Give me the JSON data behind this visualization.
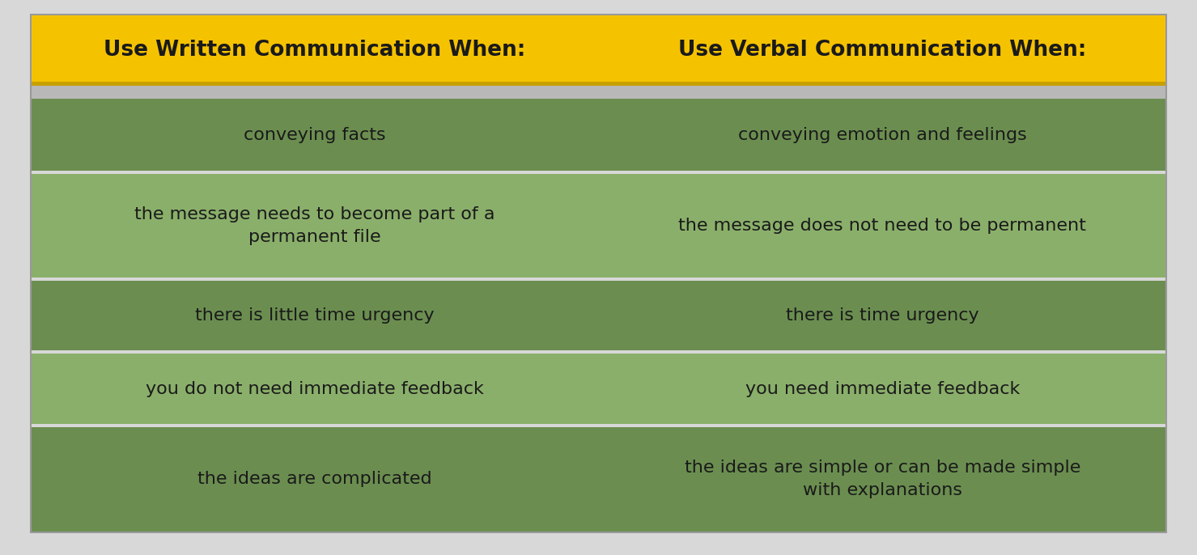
{
  "header": [
    "Use Written Communication When:",
    "Use Verbal Communication When:"
  ],
  "rows": [
    [
      "conveying facts",
      "conveying emotion and feelings"
    ],
    [
      "the message needs to become part of a\npermanent file",
      "the message does not need to be permanent"
    ],
    [
      "there is little time urgency",
      "there is time urgency"
    ],
    [
      "you do not need immediate feedback",
      "you need immediate feedback"
    ],
    [
      "the ideas are complicated",
      "the ideas are simple or can be made simple\nwith explanations"
    ]
  ],
  "header_bg": "#F5C200",
  "header_text_color": "#1a1a1a",
  "row_colors_dark": "#6B8E50",
  "row_colors_light": "#8AAF6A",
  "row_text_color": "#1a1a1a",
  "outer_border_color": "#b0b0b0",
  "fig_bg": "#d8d8d8",
  "header_fontsize": 19,
  "row_fontsize": 16
}
